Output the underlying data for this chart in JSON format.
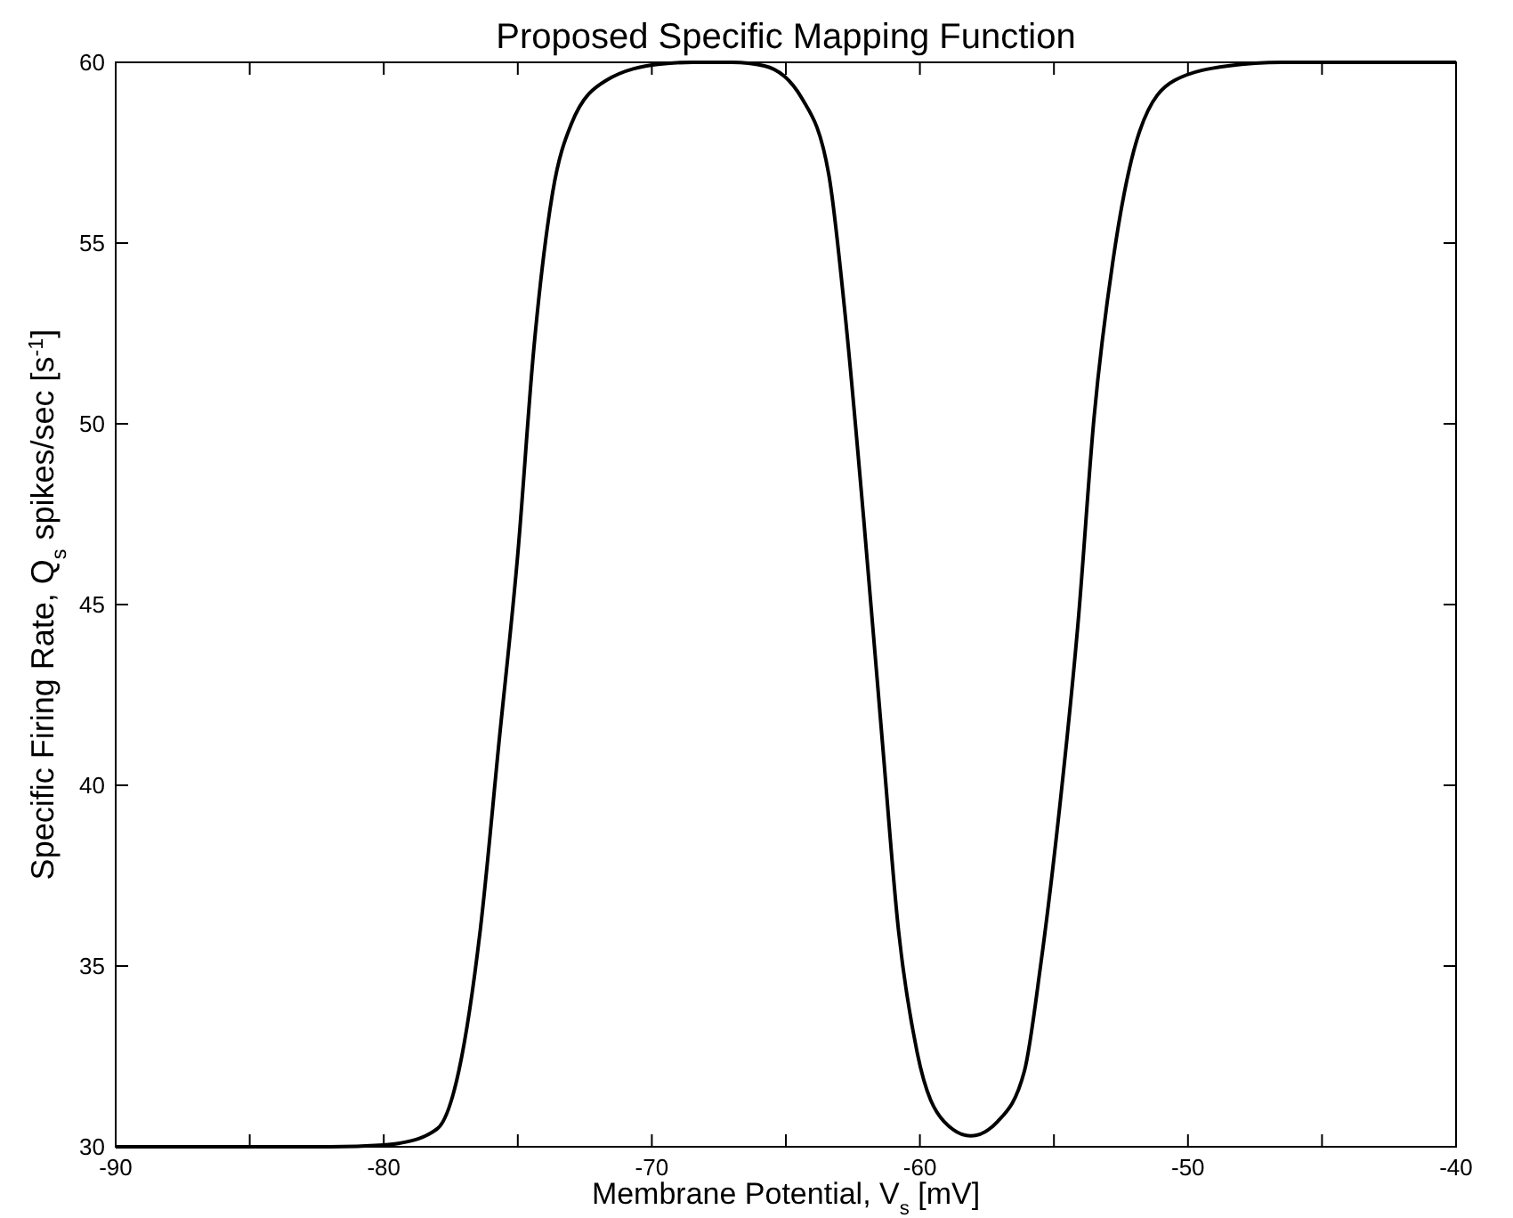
{
  "chart_data": {
    "type": "line",
    "title": "Proposed Specific Mapping Function",
    "xlabel": "Membrane Potential, V$_{s}$ [mV]",
    "ylabel": "Specific Firing Rate,  Q$_{s}$ spikes/sec [s$^{-1}$]",
    "x": [
      -90,
      -85,
      -82,
      -80,
      -79.4,
      -78,
      -77.2,
      -76.4,
      -75.7,
      -75,
      -74.4,
      -73.7,
      -73,
      -71.7,
      -69.7,
      -68.5,
      -67,
      -65.8,
      -64.4,
      -63.4,
      -62.8,
      -62.1,
      -61.4,
      -60.8,
      -60.1,
      -59.1,
      -58.1,
      -57.1,
      -56.1,
      -55.5,
      -54.8,
      -54.1,
      -53.5,
      -52.8,
      -51.8,
      -50.5,
      -48.5,
      -46.5,
      -43,
      -40
    ],
    "series": [
      {
        "color": "#000000",
        "values": [
          30,
          30,
          30,
          30.05,
          30.1,
          30.5,
          32.1,
          36,
          41.2,
          46.4,
          52.1,
          56.4,
          58.3,
          59.5,
          59.95,
          60,
          60,
          59.9,
          59,
          56.9,
          53.1,
          47.4,
          41.2,
          36,
          32.6,
          30.7,
          30.3,
          30.7,
          32.1,
          35,
          39.3,
          44.5,
          50.2,
          54.5,
          58.1,
          59.5,
          59.9,
          60,
          60,
          60
        ]
      }
    ],
    "xlim": [
      -90,
      -40
    ],
    "xticks": [
      -90,
      {
        "value": -85,
        "label": null
      },
      -80,
      {
        "value": -75,
        "label": null
      },
      -70,
      {
        "value": -65,
        "label": null
      },
      -60,
      {
        "value": -55,
        "label": null
      },
      -50,
      {
        "value": -45,
        "label": null
      },
      -40
    ],
    "ylim": [
      30,
      60
    ],
    "yticks": [
      30,
      35,
      40,
      45,
      50,
      55,
      60
    ],
    "grid": false,
    "marker": "none",
    "line_style": "solid"
  }
}
